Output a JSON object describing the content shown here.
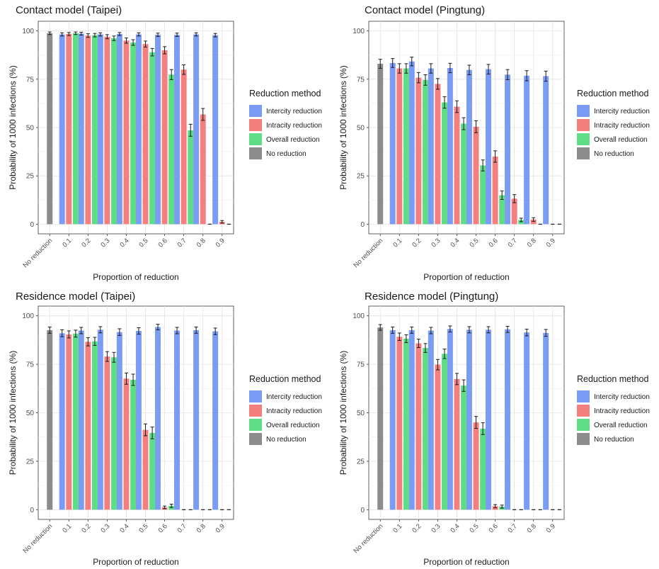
{
  "legend_title": "Reduction method",
  "legend_items": [
    {
      "label": "Intercity reduction",
      "color": "#7b9cf5"
    },
    {
      "label": "Intracity reduction",
      "color": "#f47f7f"
    },
    {
      "label": "Overall reduction",
      "color": "#5fdd86"
    },
    {
      "label": "No reduction",
      "color": "#8c8c8c"
    }
  ],
  "chart_data": [
    {
      "type": "bar",
      "title": "Contact model (Taipei)",
      "xlabel": "Proportion of reduction",
      "ylabel": "Probability of 1000 infections (%)",
      "ylim": [
        0,
        100
      ],
      "yticks": [
        0,
        25,
        50,
        75,
        100
      ],
      "categories": [
        "No reduction",
        "0.1",
        "0.2",
        "0.3",
        "0.4",
        "0.5",
        "0.6",
        "0.7",
        "0.8",
        "0.9"
      ],
      "grid": true,
      "legend_position": "right",
      "series": [
        {
          "name": "No reduction",
          "values": [
            98.8,
            null,
            null,
            null,
            null,
            null,
            null,
            null,
            null,
            null
          ]
        },
        {
          "name": "Intercity reduction",
          "values": [
            null,
            98.2,
            98.6,
            98.2,
            98.4,
            98.2,
            98.0,
            98.0,
            98.2,
            97.8
          ]
        },
        {
          "name": "Intracity reduction",
          "values": [
            null,
            98.4,
            97.6,
            97.0,
            95.0,
            93.2,
            90.0,
            80.0,
            56.8,
            1.2
          ]
        },
        {
          "name": "Overall reduction",
          "values": [
            null,
            98.8,
            97.8,
            96.2,
            94.0,
            89.0,
            77.4,
            48.6,
            0,
            0
          ]
        }
      ]
    },
    {
      "type": "bar",
      "title": "Contact model (Pingtung)",
      "xlabel": "Proportion of reduction",
      "ylabel": "Probability of 1000 infections (%)",
      "ylim": [
        0,
        100
      ],
      "yticks": [
        0,
        25,
        50,
        75,
        100
      ],
      "categories": [
        "No reduction",
        "0.1",
        "0.2",
        "0.3",
        "0.4",
        "0.5",
        "0.6",
        "0.7",
        "0.8",
        "0.9"
      ],
      "grid": true,
      "legend_position": "right",
      "series": [
        {
          "name": "No reduction",
          "values": [
            83.0,
            null,
            null,
            null,
            null,
            null,
            null,
            null,
            null,
            null
          ]
        },
        {
          "name": "Intercity reduction",
          "values": [
            null,
            83.4,
            84.2,
            80.6,
            80.8,
            79.8,
            80.2,
            77.4,
            76.8,
            76.6
          ]
        },
        {
          "name": "Intracity reduction",
          "values": [
            null,
            80.6,
            75.8,
            72.6,
            60.8,
            50.4,
            35.0,
            13.2,
            2.4,
            0
          ]
        },
        {
          "name": "Overall reduction",
          "values": [
            null,
            80.6,
            74.6,
            63.0,
            52.0,
            30.4,
            15.0,
            2.2,
            0,
            0
          ]
        }
      ]
    },
    {
      "type": "bar",
      "title": "Residence model (Taipei)",
      "xlabel": "Proportion of reduction",
      "ylabel": "Probability of 1000 infections (%)",
      "ylim": [
        0,
        100
      ],
      "yticks": [
        0,
        25,
        50,
        75,
        100
      ],
      "categories": [
        "No reduction",
        "0.1",
        "0.2",
        "0.3",
        "0.4",
        "0.5",
        "0.6",
        "0.7",
        "0.8",
        "0.9"
      ],
      "grid": true,
      "legend_position": "right",
      "series": [
        {
          "name": "No reduction",
          "values": [
            92.6,
            null,
            null,
            null,
            null,
            null,
            null,
            null,
            null,
            null
          ]
        },
        {
          "name": "Intercity reduction",
          "values": [
            null,
            91.0,
            92.4,
            92.8,
            91.6,
            92.2,
            94.2,
            92.4,
            92.6,
            92.0
          ]
        },
        {
          "name": "Intracity reduction",
          "values": [
            null,
            90.4,
            86.6,
            79.0,
            67.6,
            41.2,
            1.2,
            0,
            0,
            0
          ]
        },
        {
          "name": "Overall reduction",
          "values": [
            null,
            90.8,
            86.8,
            78.6,
            67.0,
            39.6,
            2.0,
            0,
            0,
            0
          ]
        }
      ]
    },
    {
      "type": "bar",
      "title": "Residence model (Pingtung)",
      "xlabel": "Proportion of reduction",
      "ylabel": "Probability of 1000 infections (%)",
      "ylim": [
        0,
        100
      ],
      "yticks": [
        0,
        25,
        50,
        75,
        100
      ],
      "categories": [
        "No reduction",
        "0.1",
        "0.2",
        "0.3",
        "0.4",
        "0.5",
        "0.6",
        "0.7",
        "0.8",
        "0.9"
      ],
      "grid": true,
      "legend_position": "right",
      "series": [
        {
          "name": "No reduction",
          "values": [
            94.0,
            null,
            null,
            null,
            null,
            null,
            null,
            null,
            null,
            null
          ]
        },
        {
          "name": "Intercity reduction",
          "values": [
            null,
            92.6,
            92.6,
            92.4,
            93.2,
            92.8,
            92.8,
            93.0,
            91.4,
            91.2
          ]
        },
        {
          "name": "Intracity reduction",
          "values": [
            null,
            89.2,
            85.8,
            74.8,
            67.4,
            45.0,
            1.8,
            0,
            0,
            0
          ]
        },
        {
          "name": "Overall reduction",
          "values": [
            null,
            88.2,
            83.4,
            80.4,
            64.0,
            41.8,
            1.6,
            0,
            0,
            0
          ]
        }
      ]
    }
  ]
}
